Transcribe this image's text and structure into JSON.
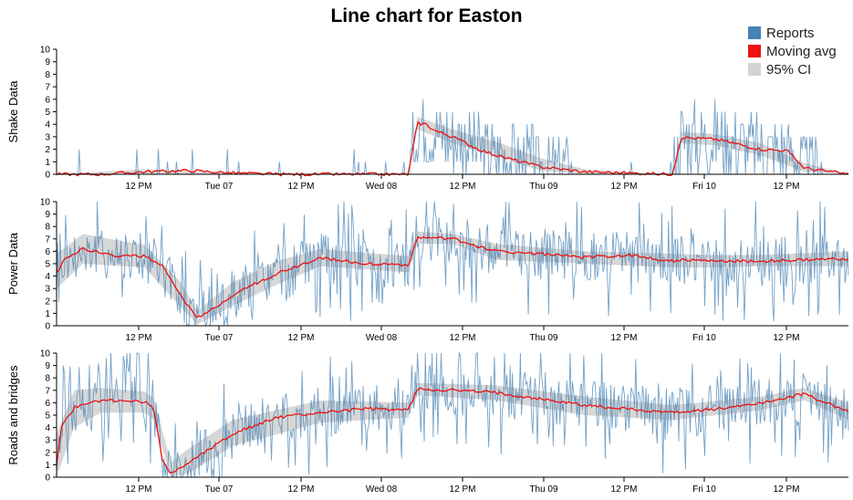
{
  "title": "Line chart for Easton",
  "legend": [
    {
      "label": "Reports",
      "color": "#4682b4"
    },
    {
      "label": "Moving avg",
      "color": "#ee1111"
    },
    {
      "label": "95% CI",
      "color": "#d3d3d3"
    }
  ],
  "chart_data": [
    {
      "type": "line",
      "ylabel": "Shake Data",
      "ylim": [
        0,
        10
      ],
      "y_ticks": [
        0,
        1,
        2,
        3,
        4,
        5,
        6,
        7,
        8,
        9,
        10
      ],
      "x_ticks": [
        "12 PM",
        "Tue 07",
        "12 PM",
        "Wed 08",
        "12 PM",
        "Thu 09",
        "12 PM",
        "Fri 10",
        "12 PM"
      ],
      "series": [
        {
          "name": "Moving avg",
          "x": [
            0,
            0.5,
            1,
            1.5,
            2,
            2.5,
            3,
            3.5,
            4,
            4.1,
            4.2,
            4.3,
            4.5,
            4.8,
            5,
            5.5,
            6,
            7,
            7.1,
            7.2,
            7.5,
            8,
            8.3,
            8.5,
            9
          ],
          "values": [
            0,
            0,
            0.2,
            0.3,
            0.1,
            0,
            0,
            0,
            0,
            4.1,
            4,
            3.5,
            3,
            2,
            1.5,
            0.6,
            0.2,
            0,
            3,
            2.9,
            2.8,
            2,
            1.9,
            0.5,
            0
          ]
        },
        {
          "name": "95% CI upper",
          "x": [
            0,
            1,
            2,
            3,
            4,
            4.1,
            4.5,
            5,
            5.5,
            6,
            7,
            7.1,
            7.5,
            8,
            8.5,
            9
          ],
          "values": [
            0,
            0.4,
            0.2,
            0,
            0,
            4.6,
            3.6,
            2.6,
            1.3,
            0.4,
            0,
            3.4,
            3.2,
            2.5,
            0.9,
            0
          ]
        },
        {
          "name": "95% CI lower",
          "x": [
            0,
            1,
            2,
            3,
            4,
            4.1,
            4.5,
            5,
            5.5,
            6,
            7,
            7.1,
            7.5,
            8,
            8.5,
            9
          ],
          "values": [
            0,
            0.05,
            0,
            0,
            0,
            3.6,
            2.5,
            1.4,
            0.3,
            0,
            0,
            2.5,
            2.3,
            1.5,
            0.2,
            0
          ]
        }
      ]
    },
    {
      "type": "line",
      "ylabel": "Power Data",
      "ylim": [
        0,
        10
      ],
      "y_ticks": [
        0,
        1,
        2,
        3,
        4,
        5,
        6,
        7,
        8,
        9,
        10
      ],
      "x_ticks": [
        "12 PM",
        "Tue 07",
        "12 PM",
        "Wed 08",
        "12 PM",
        "Thu 09",
        "12 PM",
        "Fri 10",
        "12 PM"
      ],
      "series": [
        {
          "name": "Moving avg",
          "x": [
            0,
            0.1,
            0.3,
            0.6,
            1,
            1.2,
            1.4,
            1.6,
            1.8,
            2,
            2.5,
            3,
            3.5,
            4,
            4.1,
            4.5,
            5,
            5.5,
            6,
            6.5,
            7,
            7.1,
            7.5,
            8,
            8.5,
            9
          ],
          "values": [
            4.2,
            5.5,
            6.2,
            5.7,
            5.6,
            4.8,
            2.5,
            0.6,
            1.5,
            2.5,
            4.2,
            5.5,
            5,
            4.9,
            7.1,
            7,
            6,
            5.8,
            5.5,
            5.7,
            5.2,
            5.3,
            5.2,
            5.2,
            5.3,
            5.4
          ]
        },
        {
          "name": "95% CI upper",
          "x": [
            0,
            0.3,
            1,
            1.4,
            1.6,
            2,
            2.5,
            3,
            4,
            4.1,
            4.5,
            5,
            6,
            7,
            7.5,
            8,
            9
          ],
          "values": [
            5.8,
            7.4,
            6.5,
            3.6,
            1.2,
            3.5,
            5.2,
            6.2,
            5.6,
            7.6,
            7.4,
            6.6,
            6,
            5.8,
            5.7,
            5.7,
            6
          ]
        },
        {
          "name": "95% CI lower",
          "x": [
            0,
            0.3,
            1,
            1.4,
            1.6,
            2,
            2.5,
            3,
            4,
            4.1,
            4.5,
            5,
            6,
            7,
            7.5,
            8,
            9
          ],
          "values": [
            3,
            5,
            4.7,
            1.6,
            0.1,
            1.6,
            3.3,
            4.8,
            4.3,
            6.6,
            6.6,
            5.3,
            5,
            4.7,
            4.7,
            4.8,
            4.8
          ]
        }
      ]
    },
    {
      "type": "line",
      "ylabel": "Roads and bridges",
      "ylim": [
        0,
        10
      ],
      "y_ticks": [
        0,
        1,
        2,
        3,
        4,
        5,
        6,
        7,
        8,
        9,
        10
      ],
      "x_ticks": [
        "12 PM",
        "Tue 07",
        "12 PM",
        "Wed 08",
        "12 PM",
        "Thu 09",
        "12 PM",
        "Fri 10",
        "12 PM"
      ],
      "series": [
        {
          "name": "Moving avg",
          "x": [
            0,
            0.05,
            0.2,
            0.5,
            1,
            1.1,
            1.2,
            1.3,
            1.5,
            2,
            2.5,
            3,
            3.5,
            4,
            4.1,
            4.5,
            5,
            5.5,
            6,
            6.5,
            7,
            7.5,
            8,
            8.5,
            9
          ],
          "values": [
            1,
            4,
            5.6,
            6.2,
            6.1,
            5.6,
            1.5,
            0.3,
            1.2,
            3.5,
            4.8,
            5.2,
            5.5,
            5.4,
            7.1,
            7,
            6.8,
            6.3,
            5.8,
            5.5,
            5.2,
            5.5,
            6,
            6.7,
            5.3
          ]
        },
        {
          "name": "95% CI upper",
          "x": [
            0,
            0.2,
            0.5,
            1,
            1.1,
            1.3,
            1.5,
            2,
            3,
            4,
            4.1,
            5,
            6,
            7,
            8,
            8.5,
            9
          ],
          "values": [
            3.5,
            7,
            7.2,
            6.9,
            6.4,
            1.2,
            2.3,
            4.6,
            6.2,
            6,
            7.6,
            7.4,
            6.5,
            5.8,
            6.5,
            7.2,
            6
          ]
        },
        {
          "name": "95% CI lower",
          "x": [
            0,
            0.2,
            0.5,
            1,
            1.1,
            1.3,
            1.5,
            2,
            3,
            4,
            4.1,
            5,
            6,
            7,
            8,
            8.5,
            9
          ],
          "values": [
            0,
            4,
            5.2,
            5.2,
            4.7,
            0,
            0.3,
            2.5,
            4.4,
            4.8,
            6.6,
            6.2,
            5,
            4.6,
            5.4,
            6.2,
            4.6
          ]
        }
      ]
    }
  ]
}
